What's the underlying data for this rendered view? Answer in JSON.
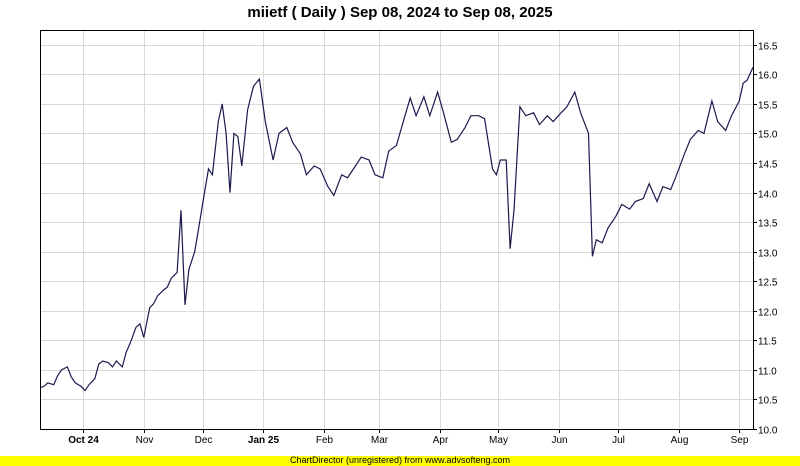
{
  "title": "miietf ( Daily ) Sep 08, 2024 to Sep 08, 2025",
  "footer": "ChartDirector (unregistered) from www.advsofteng.com",
  "colors": {
    "line": "#1a1a4d",
    "grid": "#d9d9d9",
    "axis": "#000000",
    "footer_bg": "#ffff00"
  },
  "chart_data": {
    "type": "line",
    "title": "miietf ( Daily ) Sep 08, 2024 to Sep 08, 2025",
    "xlabel": "",
    "ylabel": "",
    "ylim": [
      10.0,
      16.75
    ],
    "xlim": [
      "2024-09-09",
      "2025-09-08"
    ],
    "grid": true,
    "legend": "none",
    "x_tick_labels": [
      {
        "date": "2024-10-01",
        "label": "Oct 24",
        "bold": true
      },
      {
        "date": "2024-11-01",
        "label": "Nov",
        "bold": false
      },
      {
        "date": "2024-12-01",
        "label": "Dec",
        "bold": false
      },
      {
        "date": "2025-01-01",
        "label": "Jan 25",
        "bold": true
      },
      {
        "date": "2025-02-01",
        "label": "Feb",
        "bold": false
      },
      {
        "date": "2025-03-01",
        "label": "Mar",
        "bold": false
      },
      {
        "date": "2025-04-01",
        "label": "Apr",
        "bold": false
      },
      {
        "date": "2025-05-01",
        "label": "May",
        "bold": false
      },
      {
        "date": "2025-06-01",
        "label": "Jun",
        "bold": false
      },
      {
        "date": "2025-07-01",
        "label": "Jul",
        "bold": false
      },
      {
        "date": "2025-08-01",
        "label": "Aug",
        "bold": false
      },
      {
        "date": "2025-09-01",
        "label": "Sep",
        "bold": false
      }
    ],
    "y_ticks": [
      "10.0",
      "10.5",
      "11.0",
      "11.5",
      "12.0",
      "12.5",
      "13.0",
      "13.5",
      "14.0",
      "14.5",
      "15.0",
      "15.5",
      "16.0",
      "16.5"
    ],
    "series": [
      {
        "points": [
          [
            "2024-09-09",
            10.7
          ],
          [
            "2024-09-11",
            10.72
          ],
          [
            "2024-09-13",
            10.78
          ],
          [
            "2024-09-16",
            10.75
          ],
          [
            "2024-09-18",
            10.9
          ],
          [
            "2024-09-20",
            11.0
          ],
          [
            "2024-09-23",
            11.05
          ],
          [
            "2024-09-25",
            10.88
          ],
          [
            "2024-09-27",
            10.78
          ],
          [
            "2024-09-30",
            10.72
          ],
          [
            "2024-10-02",
            10.65
          ],
          [
            "2024-10-04",
            10.75
          ],
          [
            "2024-10-07",
            10.85
          ],
          [
            "2024-10-09",
            11.1
          ],
          [
            "2024-10-11",
            11.15
          ],
          [
            "2024-10-14",
            11.12
          ],
          [
            "2024-10-16",
            11.05
          ],
          [
            "2024-10-18",
            11.15
          ],
          [
            "2024-10-21",
            11.05
          ],
          [
            "2024-10-23",
            11.3
          ],
          [
            "2024-10-25",
            11.45
          ],
          [
            "2024-10-28",
            11.72
          ],
          [
            "2024-10-30",
            11.78
          ],
          [
            "2024-11-01",
            11.55
          ],
          [
            "2024-11-04",
            12.05
          ],
          [
            "2024-11-06",
            12.12
          ],
          [
            "2024-11-08",
            12.25
          ],
          [
            "2024-11-11",
            12.35
          ],
          [
            "2024-11-13",
            12.4
          ],
          [
            "2024-11-15",
            12.55
          ],
          [
            "2024-11-18",
            12.65
          ],
          [
            "2024-11-20",
            13.7
          ],
          [
            "2024-11-22",
            12.1
          ],
          [
            "2024-11-24",
            12.7
          ],
          [
            "2024-11-27",
            13.0
          ],
          [
            "2024-11-29",
            13.4
          ],
          [
            "2024-12-02",
            14.0
          ],
          [
            "2024-12-04",
            14.4
          ],
          [
            "2024-12-06",
            14.3
          ],
          [
            "2024-12-09",
            15.2
          ],
          [
            "2024-12-11",
            15.5
          ],
          [
            "2024-12-13",
            15.0
          ],
          [
            "2024-12-15",
            14.0
          ],
          [
            "2024-12-17",
            15.0
          ],
          [
            "2024-12-19",
            14.95
          ],
          [
            "2024-12-21",
            14.45
          ],
          [
            "2024-12-24",
            15.4
          ],
          [
            "2024-12-27",
            15.8
          ],
          [
            "2024-12-30",
            15.92
          ],
          [
            "2025-01-02",
            15.2
          ],
          [
            "2025-01-06",
            14.55
          ],
          [
            "2025-01-09",
            15.0
          ],
          [
            "2025-01-13",
            15.1
          ],
          [
            "2025-01-16",
            14.85
          ],
          [
            "2025-01-20",
            14.65
          ],
          [
            "2025-01-23",
            14.3
          ],
          [
            "2025-01-27",
            14.45
          ],
          [
            "2025-01-30",
            14.4
          ],
          [
            "2025-02-03",
            14.1
          ],
          [
            "2025-02-06",
            13.95
          ],
          [
            "2025-02-10",
            14.3
          ],
          [
            "2025-02-13",
            14.25
          ],
          [
            "2025-02-17",
            14.45
          ],
          [
            "2025-02-20",
            14.6
          ],
          [
            "2025-02-24",
            14.55
          ],
          [
            "2025-02-27",
            14.3
          ],
          [
            "2025-03-03",
            14.25
          ],
          [
            "2025-03-06",
            14.7
          ],
          [
            "2025-03-10",
            14.8
          ],
          [
            "2025-03-13",
            15.15
          ],
          [
            "2025-03-17",
            15.6
          ],
          [
            "2025-03-20",
            15.3
          ],
          [
            "2025-03-24",
            15.62
          ],
          [
            "2025-03-27",
            15.3
          ],
          [
            "2025-03-31",
            15.7
          ],
          [
            "2025-04-03",
            15.35
          ],
          [
            "2025-04-07",
            14.85
          ],
          [
            "2025-04-10",
            14.9
          ],
          [
            "2025-04-14",
            15.1
          ],
          [
            "2025-04-17",
            15.3
          ],
          [
            "2025-04-21",
            15.3
          ],
          [
            "2025-04-24",
            15.25
          ],
          [
            "2025-04-28",
            14.4
          ],
          [
            "2025-04-30",
            14.3
          ],
          [
            "2025-05-02",
            14.55
          ],
          [
            "2025-05-05",
            14.55
          ],
          [
            "2025-05-07",
            13.05
          ],
          [
            "2025-05-09",
            13.7
          ],
          [
            "2025-05-12",
            15.45
          ],
          [
            "2025-05-15",
            15.3
          ],
          [
            "2025-05-19",
            15.35
          ],
          [
            "2025-05-22",
            15.15
          ],
          [
            "2025-05-26",
            15.3
          ],
          [
            "2025-05-29",
            15.2
          ],
          [
            "2025-06-02",
            15.35
          ],
          [
            "2025-06-05",
            15.45
          ],
          [
            "2025-06-09",
            15.7
          ],
          [
            "2025-06-12",
            15.35
          ],
          [
            "2025-06-16",
            15.0
          ],
          [
            "2025-06-18",
            12.92
          ],
          [
            "2025-06-20",
            13.2
          ],
          [
            "2025-06-23",
            13.15
          ],
          [
            "2025-06-26",
            13.4
          ],
          [
            "2025-06-30",
            13.6
          ],
          [
            "2025-07-03",
            13.8
          ],
          [
            "2025-07-07",
            13.72
          ],
          [
            "2025-07-10",
            13.85
          ],
          [
            "2025-07-14",
            13.9
          ],
          [
            "2025-07-17",
            14.15
          ],
          [
            "2025-07-21",
            13.85
          ],
          [
            "2025-07-24",
            14.1
          ],
          [
            "2025-07-28",
            14.05
          ],
          [
            "2025-07-31",
            14.3
          ],
          [
            "2025-08-04",
            14.65
          ],
          [
            "2025-08-07",
            14.9
          ],
          [
            "2025-08-11",
            15.05
          ],
          [
            "2025-08-14",
            15.0
          ],
          [
            "2025-08-18",
            15.55
          ],
          [
            "2025-08-21",
            15.2
          ],
          [
            "2025-08-25",
            15.05
          ],
          [
            "2025-08-28",
            15.3
          ],
          [
            "2025-09-01",
            15.55
          ],
          [
            "2025-09-03",
            15.85
          ],
          [
            "2025-09-05",
            15.9
          ],
          [
            "2025-09-08",
            16.12
          ]
        ]
      }
    ]
  }
}
